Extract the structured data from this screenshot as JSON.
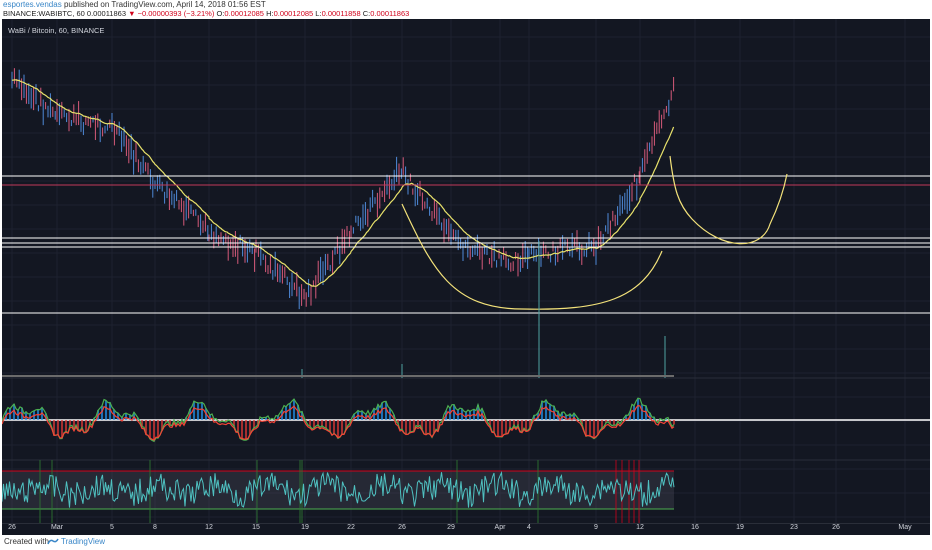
{
  "header": {
    "author": "esportes.vendas",
    "published": "published on TradingView.com, April 14, 2018 01:56 EST",
    "symbol": "BINANCE:WABIBTC, 60",
    "last": "0.00011863",
    "change": "▼ −0.00000393 (−3.21%)",
    "open_label": "O:",
    "open": "0.00012085",
    "high_label": "H:",
    "high": "0.00012085",
    "low_label": "L:",
    "low": "0.00011858",
    "close_label": "C:",
    "close": "0.00011863"
  },
  "chart": {
    "symbol_label": "WaBi / Bitcoin, 60, BINANCE",
    "x_ticks": [
      "26",
      "Mar",
      "5",
      "8",
      "12",
      "15",
      "19",
      "22",
      "26",
      "29",
      "Apr",
      "4",
      "9",
      "12",
      "16",
      "19",
      "23",
      "26",
      "May"
    ],
    "colors": {
      "background": "#131722",
      "candle_up": "#4f8ad8",
      "candle_down": "#d65a7a",
      "moving_average": "#e8e26b",
      "drawing": "#f3e27a",
      "resistance": "#ffffff",
      "rsi_band": "#d0021b",
      "rsi_line": "#4fc1c1"
    }
  },
  "chart_data": {
    "type": "line",
    "title": "WaBi / Bitcoin, 60, BINANCE",
    "x": [
      "26",
      "Mar",
      "5",
      "8",
      "12",
      "15",
      "19",
      "22",
      "26",
      "29",
      "Apr",
      "4",
      "9",
      "12"
    ],
    "series": [
      {
        "values": [
          0.000185,
          0.000172,
          0.000168,
          0.000147,
          0.00013,
          0.000122,
          0.000106,
          0.00013,
          0.000152,
          0.000127,
          0.000119,
          0.000121,
          0.000125,
          0.00015
        ]
      }
    ]
  },
  "footer": {
    "created_with": "Created with",
    "brand": "TradingView"
  }
}
